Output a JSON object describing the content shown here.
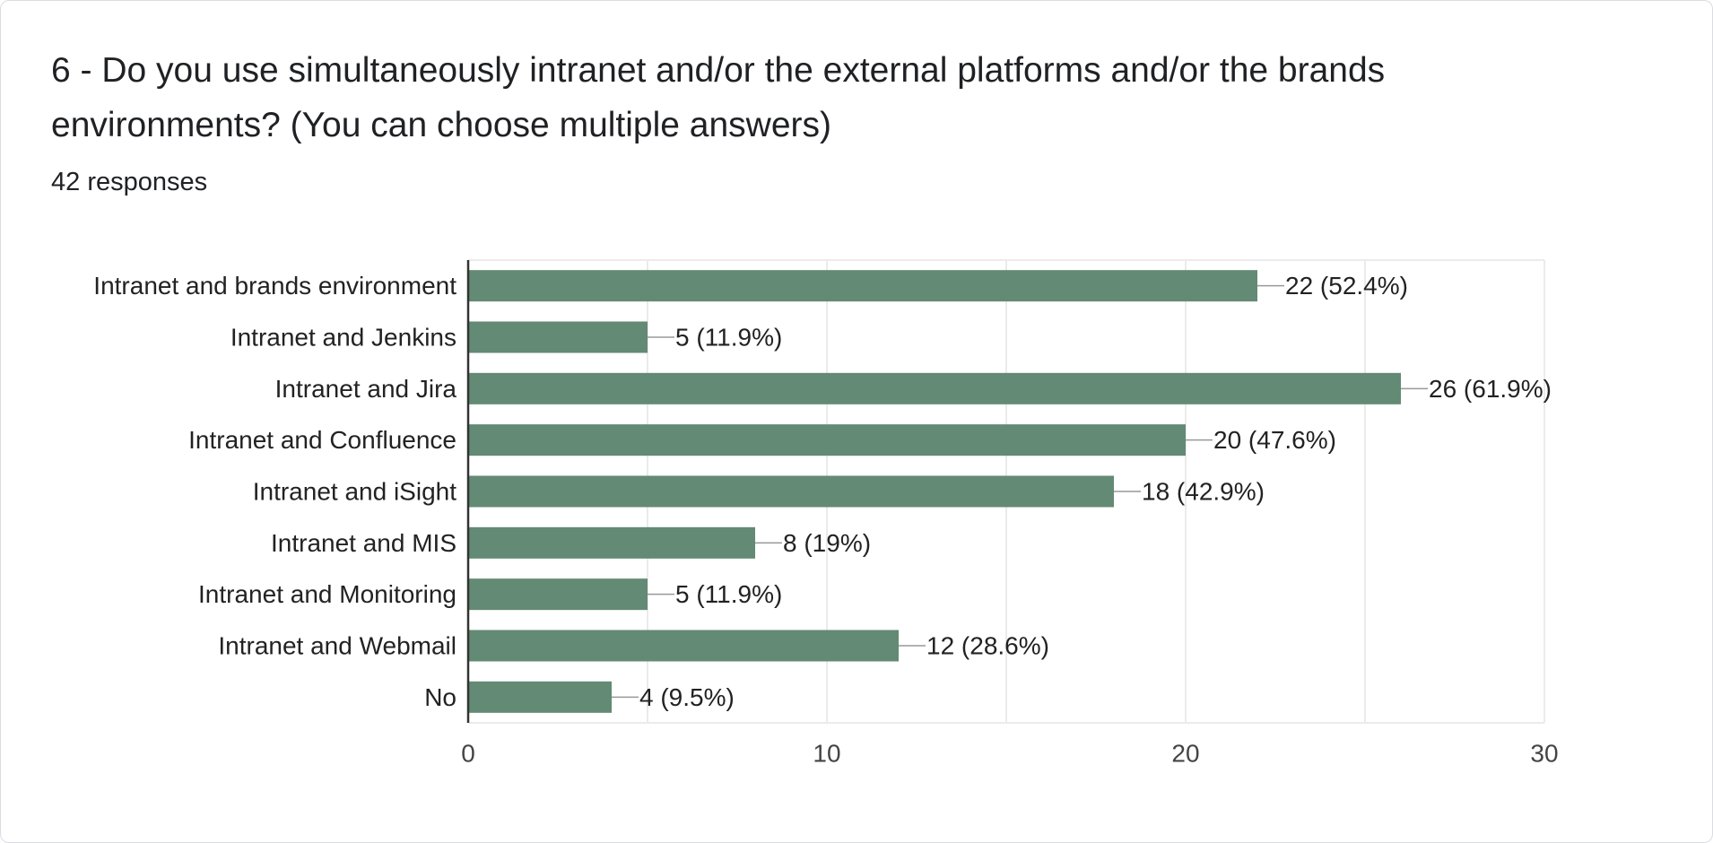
{
  "question": {
    "title": "6 - Do you use simultaneously intranet and/or the external platforms and/or the brands environments? (You can choose multiple answers)",
    "responses": "42 responses"
  },
  "colors": {
    "bar": "#638a74",
    "grid": "#ebebeb",
    "axis": "#333333",
    "connector": "#999999"
  },
  "chart_data": {
    "type": "bar",
    "orientation": "horizontal",
    "title": "",
    "xlabel": "",
    "ylabel": "",
    "categories": [
      "Intranet and brands environment",
      "Intranet and Jenkins",
      "Intranet and Jira",
      "Intranet and Confluence",
      "Intranet and iSight",
      "Intranet and MIS",
      "Intranet and Monitoring",
      "Intranet and Webmail",
      "No"
    ],
    "values": [
      22,
      5,
      26,
      20,
      18,
      8,
      5,
      12,
      4
    ],
    "value_labels": [
      "22 (52.4%)",
      "5 (11.9%)",
      "26 (61.9%)",
      "20 (47.6%)",
      "18 (42.9%)",
      "8 (19%)",
      "5 (11.9%)",
      "12 (28.6%)",
      "4 (9.5%)"
    ],
    "xlim": [
      0,
      30
    ],
    "xticks": [
      0,
      10,
      20,
      30
    ],
    "xtick_labels": [
      "0",
      "10",
      "20",
      "30"
    ],
    "minor_grid_step": 5,
    "grid": true,
    "legend": "none"
  }
}
